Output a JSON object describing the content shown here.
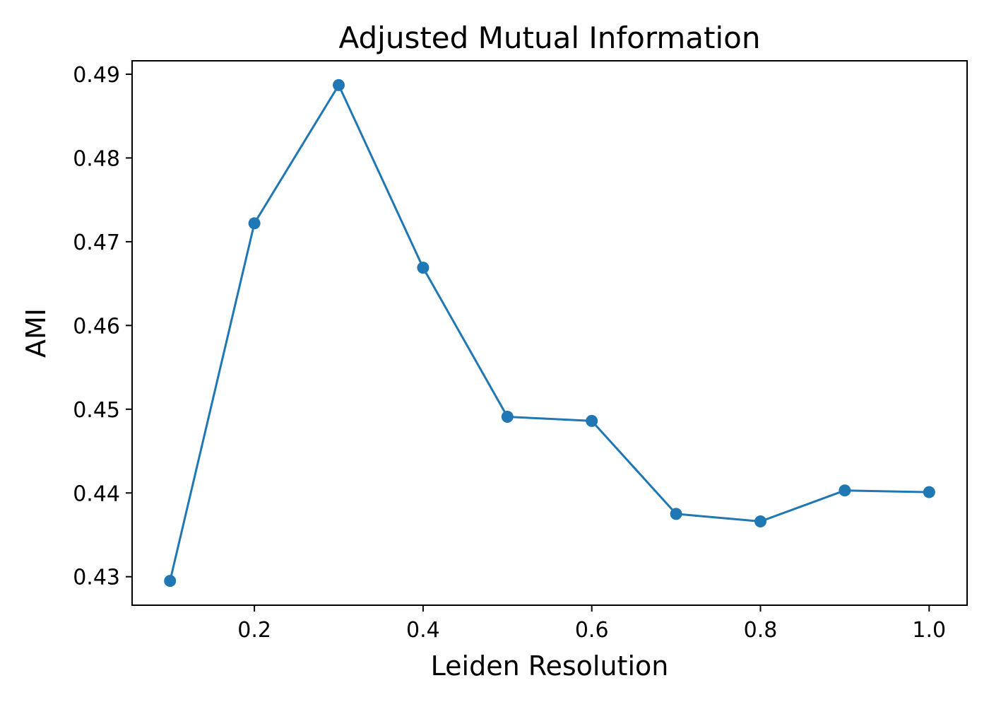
{
  "chart_data": {
    "type": "line",
    "title": "Adjusted Mutual Information",
    "xlabel": "Leiden Resolution",
    "ylabel": "AMI",
    "xlim": [
      0.055,
      1.045
    ],
    "ylim": [
      0.4266,
      0.4916
    ],
    "xticks": [
      0.2,
      0.4,
      0.6,
      0.8,
      1.0
    ],
    "xtick_labels": [
      "0.2",
      "0.4",
      "0.6",
      "0.8",
      "1.0"
    ],
    "yticks": [
      0.43,
      0.44,
      0.45,
      0.46,
      0.47,
      0.48,
      0.49
    ],
    "ytick_labels": [
      "0.43",
      "0.44",
      "0.45",
      "0.46",
      "0.47",
      "0.48",
      "0.49"
    ],
    "grid": false,
    "legend": "none",
    "series": [
      {
        "color": "#1f77b4",
        "marker": "circle",
        "x": [
          0.1,
          0.2,
          0.3,
          0.4,
          0.5,
          0.6,
          0.7,
          0.8,
          0.9,
          1.0
        ],
        "y": [
          0.4295,
          0.4722,
          0.4887,
          0.4669,
          0.4491,
          0.4486,
          0.4375,
          0.4366,
          0.4403,
          0.4401
        ]
      }
    ]
  }
}
